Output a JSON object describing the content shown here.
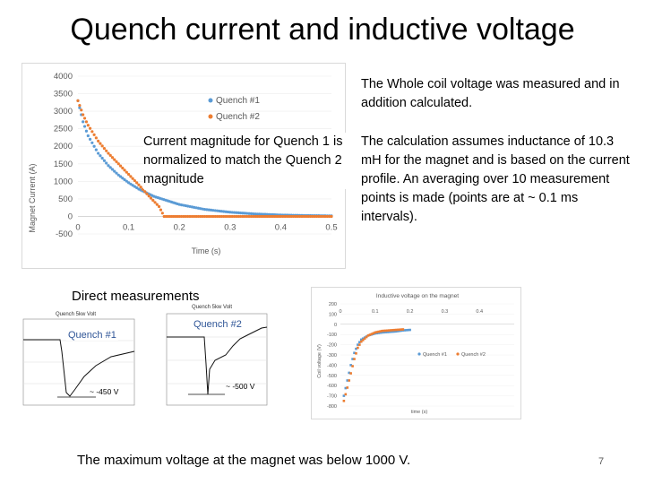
{
  "slide": {
    "title": "Quench current and inductive voltage",
    "page_number": "7",
    "whole_coil_note": "The Whole coil voltage was measured and in addition calculated.",
    "calculation_note": "The calculation assumes inductance of 10.3 mH for the magnet and is based on the current profile. An averaging over 10 measurement points is made (points are at ~ 0.1 ms intervals).",
    "normalization_note": "Current magnitude for Quench 1 is normalized to match the Quench 2 magnitude",
    "direct_measurements_label": "Direct measurements",
    "quench1_label": "Quench #1",
    "quench2_label": "Quench #2",
    "quench1_min_label": "~ -450 V",
    "quench2_min_label": "~ -500 V",
    "conclusion": "The maximum voltage at the magnet was below 1000 V.",
    "scope1_title": "Quench 5kw Volt",
    "scope2_title": "Quench 5kw Volt"
  },
  "chart_data": [
    {
      "type": "scatter",
      "title": "",
      "xlabel": "Time (s)",
      "ylabel": "Magnet Current (A)",
      "xlim": [
        0,
        0.5
      ],
      "ylim": [
        -500,
        4000
      ],
      "x_ticks": [
        "0",
        "0.1",
        "0.2",
        "0.3",
        "0.4",
        "0.5"
      ],
      "y_ticks": [
        "4000",
        "3500",
        "3000",
        "2500",
        "2000",
        "1500",
        "1000",
        "500",
        "0",
        "-500"
      ],
      "legend": [
        "Quench #1",
        "Quench #2"
      ],
      "colors": {
        "Quench #1": "#5b9bd5",
        "Quench #2": "#ed7d31"
      },
      "series": [
        {
          "name": "Quench #1",
          "x": [
            0,
            0.01,
            0.02,
            0.04,
            0.06,
            0.08,
            0.1,
            0.12,
            0.15,
            0.2,
            0.25,
            0.3,
            0.35,
            0.4,
            0.45,
            0.5
          ],
          "y": [
            3300,
            2700,
            2300,
            1800,
            1450,
            1180,
            960,
            780,
            570,
            340,
            200,
            120,
            70,
            40,
            25,
            15
          ]
        },
        {
          "name": "Quench #2",
          "x": [
            0,
            0.01,
            0.02,
            0.04,
            0.06,
            0.08,
            0.1,
            0.12,
            0.14,
            0.16,
            0.17,
            0.2,
            0.25,
            0.3,
            0.35,
            0.4,
            0.45,
            0.5
          ],
          "y": [
            3300,
            2900,
            2600,
            2150,
            1800,
            1500,
            1200,
            900,
            580,
            280,
            0,
            0,
            0,
            0,
            0,
            0,
            0,
            0
          ]
        }
      ]
    },
    {
      "type": "scatter",
      "title": "Inductive voltage on the magnet",
      "xlabel": "time (s)",
      "ylabel": "Coil voltage (V)",
      "xlim": [
        0,
        0.5
      ],
      "ylim": [
        -800,
        200
      ],
      "x_ticks": [
        "0",
        "0.1",
        "0.2",
        "0.3",
        "0.4"
      ],
      "y_ticks": [
        "200",
        "100",
        "0",
        "-100",
        "-200",
        "-300",
        "-400",
        "-500",
        "-600",
        "-700",
        "-800"
      ],
      "legend": [
        "Quench #1",
        "Quench #2"
      ],
      "colors": {
        "Quench #1": "#5b9bd5",
        "Quench #2": "#ed7d31"
      },
      "series": [
        {
          "name": "Quench #1",
          "x": [
            0.01,
            0.02,
            0.03,
            0.04,
            0.05,
            0.06,
            0.08,
            0.1,
            0.12,
            0.14,
            0.16,
            0.18,
            0.2
          ],
          "y": [
            -700,
            -550,
            -400,
            -280,
            -200,
            -150,
            -110,
            -90,
            -80,
            -75,
            -70,
            -60,
            -55
          ]
        },
        {
          "name": "Quench #2",
          "x": [
            0.01,
            0.02,
            0.03,
            0.04,
            0.05,
            0.06,
            0.08,
            0.1,
            0.12,
            0.14,
            0.16,
            0.18
          ],
          "y": [
            -750,
            -620,
            -480,
            -340,
            -230,
            -170,
            -110,
            -80,
            -65,
            -60,
            -55,
            -50
          ]
        }
      ]
    }
  ]
}
